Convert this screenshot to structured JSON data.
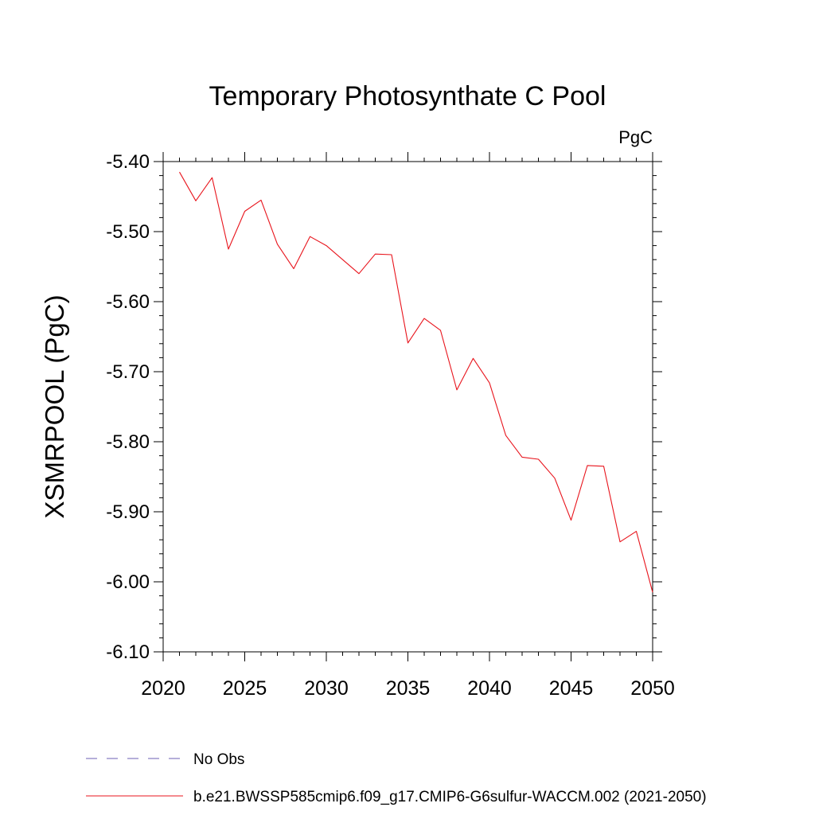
{
  "chart_data": {
    "type": "line",
    "title": "Temporary Photosynthate C Pool",
    "units": "PgC",
    "ylabel": "XSMRPOOL  (PgC)",
    "xlabel": "",
    "xlim": [
      2020,
      2050
    ],
    "ylim": [
      -6.1,
      -5.4
    ],
    "x_ticks": [
      "2020",
      "2025",
      "2030",
      "2035",
      "2040",
      "2045",
      "2050"
    ],
    "y_ticks": [
      "-5.40",
      "-5.50",
      "-5.60",
      "-5.70",
      "-5.80",
      "-5.90",
      "-6.00",
      "-6.10"
    ],
    "grid": false,
    "legend_position": "bottom",
    "series": [
      {
        "name": "b.e21.BWSSP585cmip6.f09_g17.CMIP6-G6sulfur-WACCM.002 (2021-2050)",
        "color": "#e8141c",
        "style": "solid",
        "x": [
          2021,
          2022,
          2023,
          2024,
          2025,
          2026,
          2027,
          2028,
          2029,
          2030,
          2031,
          2032,
          2033,
          2034,
          2035,
          2036,
          2037,
          2038,
          2039,
          2040,
          2041,
          2042,
          2043,
          2044,
          2045,
          2046,
          2047,
          2048,
          2049,
          2050
        ],
        "y": [
          -5.415,
          -5.456,
          -5.423,
          -5.525,
          -5.471,
          -5.455,
          -5.518,
          -5.553,
          -5.507,
          -5.52,
          -5.54,
          -5.56,
          -5.532,
          -5.533,
          -5.659,
          -5.624,
          -5.641,
          -5.726,
          -5.681,
          -5.716,
          -5.791,
          -5.822,
          -5.825,
          -5.852,
          -5.912,
          -5.834,
          -5.835,
          -5.943,
          -5.928,
          -6.015
        ]
      }
    ],
    "legend": [
      {
        "label": "No Obs",
        "color": "#6b5fb5",
        "style": "dashed"
      },
      {
        "label": "b.e21.BWSSP585cmip6.f09_g17.CMIP6-G6sulfur-WACCM.002 (2021-2050)",
        "color": "#e8141c",
        "style": "solid"
      }
    ]
  }
}
